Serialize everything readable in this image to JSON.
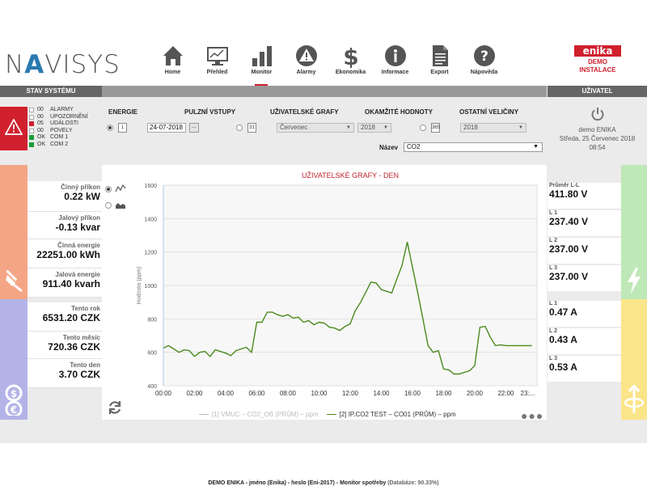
{
  "header": {
    "logo": "NAVISYS",
    "nav": [
      {
        "label": "Home",
        "icon": "home-icon"
      },
      {
        "label": "Přehled",
        "icon": "monitor-icon"
      },
      {
        "label": "Monitor",
        "icon": "bar-chart-icon"
      },
      {
        "label": "Alarmy",
        "icon": "warning-icon"
      },
      {
        "label": "Ekonomika",
        "icon": "dollar-icon"
      },
      {
        "label": "Informace",
        "icon": "info-icon"
      },
      {
        "label": "Export",
        "icon": "document-icon"
      },
      {
        "label": "Nápověda",
        "icon": "help-icon"
      }
    ],
    "active_nav": "Monitor",
    "brand": "enika",
    "brand_sub1": "DEMO",
    "brand_sub2": "INSTALACE"
  },
  "status": {
    "title": "STAV SYSTÉMU",
    "rows": [
      {
        "value": "00",
        "label": "ALARMY",
        "color": "none"
      },
      {
        "value": "00",
        "label": "UPOZORNĚNÍ",
        "color": "none"
      },
      {
        "value": "05",
        "label": "UDÁLOSTI",
        "color": "red"
      },
      {
        "value": "00",
        "label": "POVELY",
        "color": "none"
      },
      {
        "value": "OK",
        "label": "COM 1",
        "color": "green"
      },
      {
        "value": "OK",
        "label": "COM 2",
        "color": "green"
      }
    ]
  },
  "user": {
    "title": "UŽIVATEL",
    "name": "demo ENIKA",
    "date": "Středa, 25 Červenec 2018",
    "time": "08:54"
  },
  "controls": {
    "energie": "ENERGIE",
    "pulzni": "PULZNÍ VSTUPY",
    "uzivatelske": "UŽIVATELSKÉ GRAFY",
    "okamzite": "OKAMŽITÉ HODNOTY",
    "ostatni": "OSTATNÍ VELIČINY",
    "cal_day": "1",
    "cal_month": "31",
    "cal_year": "365",
    "date_value": "24-07-2018",
    "dots": "...",
    "month_value": "Červenec",
    "year_value1": "2018",
    "year_value2": "2018",
    "name_label": "Název",
    "name_value": "CO2"
  },
  "left": [
    {
      "label": "Činný příkon",
      "value": "0.22 kW"
    },
    {
      "label": "Jalový příkon",
      "value": "-0.13 kvar"
    },
    {
      "label": "Činná energie",
      "value": "22251.00 kWh"
    },
    {
      "label": "Jalová energie",
      "value": "911.40 kvarh"
    },
    {
      "label": "Tento rok",
      "value": "6531.20 CZK"
    },
    {
      "label": "Tento měsíc",
      "value": "720.36 CZK"
    },
    {
      "label": "Tento den",
      "value": "3.70 CZK"
    }
  ],
  "right": [
    {
      "label": "Průměr L-L",
      "value": "411.80 V"
    },
    {
      "label": "L 1",
      "value": "237.40 V"
    },
    {
      "label": "L 2",
      "value": "237.00 V"
    },
    {
      "label": "L 3",
      "value": "237.00 V"
    },
    {
      "label": "L 1",
      "value": "0.47 A"
    },
    {
      "label": "L 2",
      "value": "0.43 A"
    },
    {
      "label": "L 3",
      "value": "0.53 A"
    }
  ],
  "colors": {
    "red": "#d0202e",
    "stripe_orange": "#f4a585",
    "stripe_purple": "#b3b3e8",
    "stripe_green": "#bfe8b8",
    "stripe_yellow": "#fbe58a",
    "series": "#4a8a1e"
  },
  "chart_data": {
    "type": "line",
    "title": "UŽIVATELSKÉ GRAFY - DEN",
    "ylabel": "Hodnota (ppm)",
    "xlabel": "",
    "ylim": [
      400,
      1600
    ],
    "yticks": [
      "400",
      "600",
      "800",
      "1000",
      "1200",
      "1400",
      "1600"
    ],
    "xticks": [
      "00:00",
      "02:00",
      "04:00",
      "06:00",
      "08:00",
      "10:00",
      "12:00",
      "14:00",
      "16:00",
      "18:00",
      "20:00",
      "22:00",
      "23:..."
    ],
    "series": [
      {
        "name": "[1] VMUC – CO2_OB (PRŮM) – ppm",
        "visible": false,
        "x": [],
        "values": []
      },
      {
        "name": "[2] IP.CO2 TEST – CO01 (PRŮM) – ppm",
        "visible": true,
        "x": [
          0,
          0.33,
          0.67,
          1,
          1.33,
          1.67,
          2,
          2.33,
          2.67,
          3,
          3.33,
          3.67,
          4,
          4.33,
          4.67,
          5,
          5.33,
          5.67,
          6,
          6.33,
          6.67,
          7,
          7.33,
          7.67,
          8,
          8.33,
          8.67,
          9,
          9.33,
          9.67,
          10,
          10.33,
          10.67,
          11,
          11.33,
          11.67,
          12,
          12.33,
          12.67,
          13,
          13.33,
          13.67,
          14,
          14.33,
          14.67,
          15,
          15.33,
          15.67,
          16,
          16.33,
          16.67,
          17,
          17.33,
          17.67,
          18,
          18.33,
          18.67,
          19,
          19.33,
          19.67,
          20,
          20.33,
          20.67,
          21,
          21.33,
          21.67,
          22,
          22.33,
          22.67,
          23,
          23.33,
          23.67
        ],
        "values": [
          625,
          640,
          620,
          600,
          615,
          610,
          575,
          600,
          605,
          575,
          615,
          605,
          595,
          580,
          610,
          620,
          630,
          600,
          780,
          780,
          840,
          840,
          825,
          815,
          825,
          805,
          810,
          780,
          790,
          765,
          780,
          775,
          750,
          745,
          730,
          755,
          770,
          850,
          900,
          960,
          1020,
          1015,
          975,
          965,
          955,
          1040,
          1120,
          1260,
          1110,
          960,
          800,
          640,
          600,
          610,
          500,
          495,
          470,
          470,
          480,
          490,
          520,
          750,
          755,
          690,
          640,
          645,
          640,
          640,
          640,
          640,
          640,
          640
        ]
      }
    ],
    "grid": true,
    "legend": "bottom"
  },
  "footer": {
    "text": "DEMO ENIKA - jméno (Enika) - heslo (Eni-2017) - Monitor spotřeby",
    "db": "(Databáze: 90.33%)"
  }
}
